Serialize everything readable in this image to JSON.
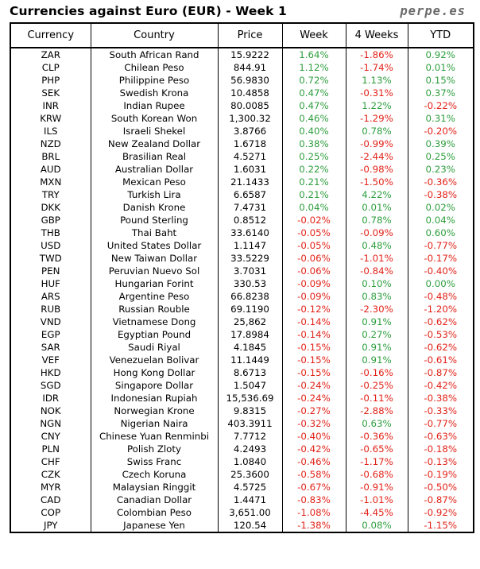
{
  "header": {
    "title": "Currencies against Euro (EUR) - Week 1",
    "site": "perpe.es"
  },
  "chart_data": {
    "type": "table",
    "columns": [
      "Currency",
      "Country",
      "Price",
      "Week",
      "4 Weeks",
      "YTD"
    ],
    "rows": [
      [
        "ZAR",
        "South African Rand",
        "15.9222",
        "1.64%",
        "-1.86%",
        "0.92%"
      ],
      [
        "CLP",
        "Chilean Peso",
        "844.91",
        "1.12%",
        "-1.74%",
        "0.01%"
      ],
      [
        "PHP",
        "Philippine Peso",
        "56.9830",
        "0.72%",
        "1.13%",
        "0.15%"
      ],
      [
        "SEK",
        "Swedish Krona",
        "10.4858",
        "0.47%",
        "-0.31%",
        "0.37%"
      ],
      [
        "INR",
        "Indian Rupee",
        "80.0085",
        "0.47%",
        "1.22%",
        "-0.22%"
      ],
      [
        "KRW",
        "South Korean Won",
        "1,300.32",
        "0.46%",
        "-1.29%",
        "0.31%"
      ],
      [
        "ILS",
        "Israeli Shekel",
        "3.8766",
        "0.40%",
        "0.78%",
        "-0.20%"
      ],
      [
        "NZD",
        "New Zealand Dollar",
        "1.6718",
        "0.38%",
        "-0.99%",
        "0.39%"
      ],
      [
        "BRL",
        "Brasilian Real",
        "4.5271",
        "0.25%",
        "-2.44%",
        "0.25%"
      ],
      [
        "AUD",
        "Australian Dollar",
        "1.6031",
        "0.22%",
        "-0.98%",
        "0.23%"
      ],
      [
        "MXN",
        "Mexican Peso",
        "21.1433",
        "0.21%",
        "-1.50%",
        "-0.36%"
      ],
      [
        "TRY",
        "Turkish Lira",
        "6.6587",
        "0.21%",
        "4.22%",
        "-0.38%"
      ],
      [
        "DKK",
        "Danish Krone",
        "7.4731",
        "0.04%",
        "0.01%",
        "0.02%"
      ],
      [
        "GBP",
        "Pound Sterling",
        "0.8512",
        "-0.02%",
        "0.78%",
        "0.04%"
      ],
      [
        "THB",
        "Thai Baht",
        "33.6140",
        "-0.05%",
        "-0.09%",
        "0.60%"
      ],
      [
        "USD",
        "United States Dollar",
        "1.1147",
        "-0.05%",
        "0.48%",
        "-0.77%"
      ],
      [
        "TWD",
        "New Taiwan Dollar",
        "33.5229",
        "-0.06%",
        "-1.01%",
        "-0.17%"
      ],
      [
        "PEN",
        "Peruvian Nuevo Sol",
        "3.7031",
        "-0.06%",
        "-0.84%",
        "-0.40%"
      ],
      [
        "HUF",
        "Hungarian Forint",
        "330.53",
        "-0.09%",
        "0.10%",
        "0.00%"
      ],
      [
        "ARS",
        "Argentine Peso",
        "66.8238",
        "-0.09%",
        "0.83%",
        "-0.48%"
      ],
      [
        "RUB",
        "Russian Rouble",
        "69.1190",
        "-0.12%",
        "-2.30%",
        "-1.20%"
      ],
      [
        "VND",
        "Vietnamese Dong",
        "25,862",
        "-0.14%",
        "0.91%",
        "-0.62%"
      ],
      [
        "EGP",
        "Egyptian Pound",
        "17.8984",
        "-0.14%",
        "0.27%",
        "-0.53%"
      ],
      [
        "SAR",
        "Saudi Riyal",
        "4.1845",
        "-0.15%",
        "0.91%",
        "-0.62%"
      ],
      [
        "VEF",
        "Venezuelan Bolivar",
        "11.1449",
        "-0.15%",
        "0.91%",
        "-0.61%"
      ],
      [
        "HKD",
        "Hong Kong Dollar",
        "8.6713",
        "-0.15%",
        "-0.16%",
        "-0.87%"
      ],
      [
        "SGD",
        "Singapore Dollar",
        "1.5047",
        "-0.24%",
        "-0.25%",
        "-0.42%"
      ],
      [
        "IDR",
        "Indonesian Rupiah",
        "15,536.69",
        "-0.24%",
        "-0.11%",
        "-0.38%"
      ],
      [
        "NOK",
        "Norwegian Krone",
        "9.8315",
        "-0.27%",
        "-2.88%",
        "-0.33%"
      ],
      [
        "NGN",
        "Nigerian Naira",
        "403.3911",
        "-0.32%",
        "0.63%",
        "-0.77%"
      ],
      [
        "CNY",
        "Chinese Yuan Renminbi",
        "7.7712",
        "-0.40%",
        "-0.36%",
        "-0.63%"
      ],
      [
        "PLN",
        "Polish Zloty",
        "4.2493",
        "-0.42%",
        "-0.65%",
        "-0.18%"
      ],
      [
        "CHF",
        "Swiss Franc",
        "1.0840",
        "-0.46%",
        "-1.17%",
        "-0.13%"
      ],
      [
        "CZK",
        "Czech Koruna",
        "25.3600",
        "-0.58%",
        "-0.68%",
        "-0.19%"
      ],
      [
        "MYR",
        "Malaysian Ringgit",
        "4.5725",
        "-0.67%",
        "-0.91%",
        "-0.50%"
      ],
      [
        "CAD",
        "Canadian Dollar",
        "1.4471",
        "-0.83%",
        "-1.01%",
        "-0.87%"
      ],
      [
        "COP",
        "Colombian Peso",
        "3,651.00",
        "-1.08%",
        "-4.45%",
        "-0.92%"
      ],
      [
        "JPY",
        "Japanese Yen",
        "120.54",
        "-1.38%",
        "0.08%",
        "-1.15%"
      ]
    ],
    "colors": {
      "positive": "#2e9e3e",
      "negative": "#e2231a",
      "text": "#000000"
    }
  }
}
